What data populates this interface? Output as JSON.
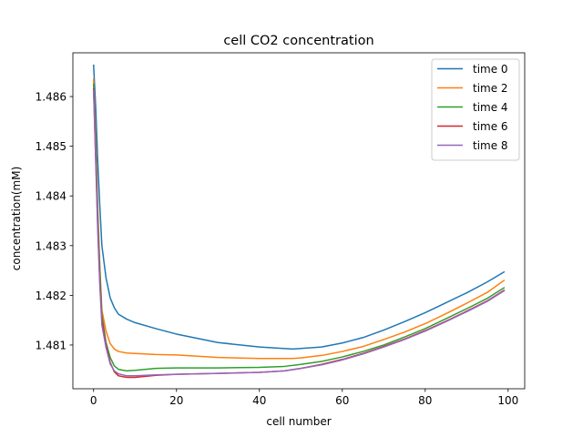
{
  "chart_data": {
    "type": "line",
    "title": "cell CO2 concentration",
    "xlabel": "cell number",
    "ylabel": "concentration(mM)",
    "xlim": [
      -5,
      104
    ],
    "ylim": [
      1.48012,
      1.48688
    ],
    "xticks": [
      0,
      20,
      40,
      60,
      80,
      100
    ],
    "yticks": [
      1.481,
      1.482,
      1.483,
      1.484,
      1.485,
      1.486
    ],
    "grid": false,
    "legend_position": "top-right",
    "series": [
      {
        "name": "time 0",
        "color": "#1f77b4",
        "x": [
          0,
          0.5,
          1,
          1.5,
          2,
          3,
          4,
          5,
          6,
          8,
          10,
          15,
          20,
          30,
          40,
          48,
          50,
          55,
          60,
          65,
          70,
          75,
          80,
          85,
          90,
          95,
          99
        ],
        "y": [
          1.48663,
          1.4858,
          1.4847,
          1.4838,
          1.483,
          1.48235,
          1.48195,
          1.48175,
          1.48162,
          1.48152,
          1.48145,
          1.48133,
          1.48122,
          1.48105,
          1.48096,
          1.48092,
          1.48093,
          1.48096,
          1.48104,
          1.48115,
          1.4813,
          1.48147,
          1.48165,
          1.48185,
          1.48205,
          1.48227,
          1.48247
        ]
      },
      {
        "name": "time 2",
        "color": "#ff7f0e",
        "x": [
          0,
          0.5,
          1,
          1.5,
          2,
          3,
          4,
          5,
          6,
          8,
          10,
          15,
          20,
          30,
          40,
          48,
          50,
          55,
          60,
          65,
          70,
          75,
          80,
          85,
          90,
          95,
          99
        ],
        "y": [
          1.48635,
          1.4852,
          1.4838,
          1.4826,
          1.4817,
          1.48128,
          1.48103,
          1.48092,
          1.48087,
          1.48084,
          1.48083,
          1.48081,
          1.4808,
          1.48075,
          1.48073,
          1.48073,
          1.48074,
          1.48079,
          1.48087,
          1.48097,
          1.48111,
          1.48126,
          1.48143,
          1.48163,
          1.48184,
          1.48206,
          1.4823
        ]
      },
      {
        "name": "time 4",
        "color": "#2ca02c",
        "x": [
          0,
          0.5,
          1,
          1.5,
          2,
          3,
          4,
          5,
          6,
          8,
          10,
          15,
          20,
          30,
          40,
          46,
          50,
          55,
          60,
          65,
          70,
          75,
          80,
          85,
          90,
          95,
          99
        ],
        "y": [
          1.48625,
          1.485,
          1.4836,
          1.4825,
          1.4816,
          1.48105,
          1.48075,
          1.48058,
          1.48051,
          1.48048,
          1.48049,
          1.48053,
          1.48054,
          1.48054,
          1.48055,
          1.48057,
          1.48061,
          1.48067,
          1.48076,
          1.48087,
          1.481,
          1.48116,
          1.48133,
          1.48153,
          1.48173,
          1.48194,
          1.48215
        ]
      },
      {
        "name": "time 6",
        "color": "#d62728",
        "x": [
          0,
          0.5,
          1,
          1.5,
          2,
          3,
          4,
          5,
          6,
          8,
          10,
          15,
          20,
          30,
          40,
          46,
          50,
          55,
          60,
          65,
          70,
          75,
          80,
          85,
          90,
          95,
          99
        ],
        "y": [
          1.48615,
          1.4848,
          1.4834,
          1.4823,
          1.4815,
          1.481,
          1.48065,
          1.48046,
          1.48038,
          1.48035,
          1.48035,
          1.48039,
          1.48041,
          1.48043,
          1.48045,
          1.48048,
          1.48053,
          1.48061,
          1.48071,
          1.48083,
          1.48097,
          1.48112,
          1.48129,
          1.48148,
          1.48168,
          1.48189,
          1.4821
        ]
      },
      {
        "name": "time 8",
        "color": "#9467bd",
        "x": [
          0,
          0.5,
          1,
          1.5,
          2,
          3,
          4,
          5,
          6,
          8,
          10,
          15,
          20,
          30,
          40,
          46,
          50,
          55,
          60,
          65,
          70,
          75,
          80,
          85,
          90,
          95,
          99
        ],
        "y": [
          1.48612,
          1.4847,
          1.4833,
          1.4822,
          1.4814,
          1.48095,
          1.48062,
          1.48048,
          1.48042,
          1.48038,
          1.48038,
          1.4804,
          1.48041,
          1.48043,
          1.48045,
          1.48048,
          1.48053,
          1.4806,
          1.4807,
          1.48082,
          1.48096,
          1.48111,
          1.48128,
          1.48147,
          1.48167,
          1.48188,
          1.48209
        ]
      }
    ]
  }
}
